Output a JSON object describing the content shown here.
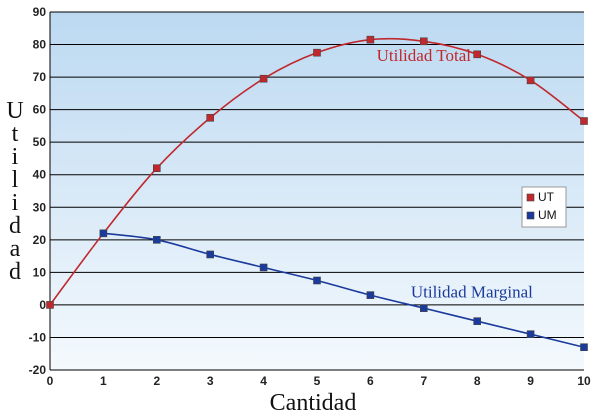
{
  "chart_data": {
    "type": "line",
    "xlabel": "Cantidad",
    "ylabel": "Utilidad",
    "x": [
      0,
      1,
      2,
      3,
      4,
      5,
      6,
      7,
      8,
      9,
      10
    ],
    "xlim": [
      0,
      10
    ],
    "ylim": [
      -20,
      90
    ],
    "yticks": [
      -20,
      -10,
      0,
      10,
      20,
      30,
      40,
      50,
      60,
      70,
      80,
      90
    ],
    "grid": true,
    "legend_position": "right",
    "series": [
      {
        "name": "UT",
        "color": "#c0282d",
        "marker": "square",
        "points": [
          [
            0,
            0
          ],
          [
            2,
            42
          ],
          [
            3,
            57.5
          ],
          [
            4,
            69.5
          ],
          [
            5,
            77.5
          ],
          [
            6,
            81.5
          ],
          [
            7,
            81
          ],
          [
            8,
            77
          ],
          [
            9,
            69
          ],
          [
            10,
            56.5
          ]
        ],
        "curve_x": [
          0,
          1,
          2,
          3,
          4,
          5,
          6,
          7,
          8,
          9,
          10
        ],
        "curve_y": [
          0,
          22,
          42,
          57.5,
          69.5,
          77.5,
          81.5,
          81,
          77,
          69,
          56.5
        ]
      },
      {
        "name": "UM",
        "color": "#1a3a9c",
        "marker": "square",
        "points": [
          [
            1,
            22
          ],
          [
            2,
            20
          ],
          [
            3,
            15.5
          ],
          [
            4,
            11.5
          ],
          [
            5,
            7.5
          ],
          [
            6,
            3
          ],
          [
            7,
            -1
          ],
          [
            8,
            -5
          ],
          [
            9,
            -9
          ],
          [
            10,
            -13
          ]
        ],
        "curve_x": [
          1,
          2,
          3,
          4,
          5,
          6,
          7,
          8,
          9,
          10
        ],
        "curve_y": [
          22,
          20,
          15.5,
          11.5,
          7.5,
          3,
          -1,
          -5,
          -9,
          -13
        ]
      }
    ],
    "annotations": [
      {
        "text": "Utilidad Total",
        "color": "#c0282d",
        "x": 7,
        "y": 75
      },
      {
        "text": "Utilidad Marginal",
        "color": "#1a3a9c",
        "x": 7.9,
        "y": 2.2
      }
    ]
  }
}
